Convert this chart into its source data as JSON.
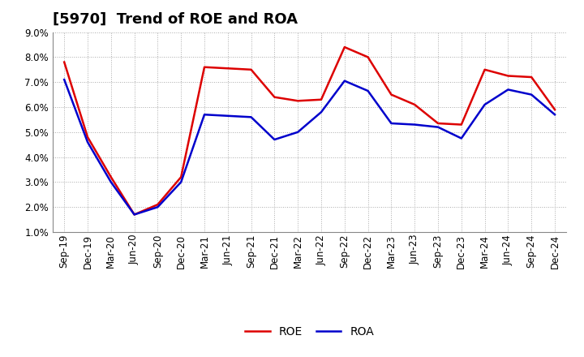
{
  "title": "[5970]  Trend of ROE and ROA",
  "labels": [
    "Sep-19",
    "Dec-19",
    "Mar-20",
    "Jun-20",
    "Sep-20",
    "Dec-20",
    "Mar-21",
    "Jun-21",
    "Sep-21",
    "Dec-21",
    "Mar-22",
    "Jun-22",
    "Sep-22",
    "Dec-22",
    "Mar-23",
    "Jun-23",
    "Sep-23",
    "Dec-23",
    "Mar-24",
    "Jun-24",
    "Sep-24",
    "Dec-24"
  ],
  "roe": [
    7.8,
    4.8,
    3.2,
    1.7,
    2.1,
    3.2,
    7.6,
    7.55,
    7.5,
    6.4,
    6.25,
    6.3,
    8.4,
    8.0,
    6.5,
    6.1,
    5.35,
    5.3,
    7.5,
    7.25,
    7.2,
    5.9
  ],
  "roa": [
    7.1,
    4.6,
    3.0,
    1.7,
    2.0,
    3.0,
    5.7,
    5.65,
    5.6,
    4.7,
    5.0,
    5.8,
    7.05,
    6.65,
    5.35,
    5.3,
    5.2,
    4.75,
    6.1,
    6.7,
    6.5,
    5.7
  ],
  "roe_color": "#dd0000",
  "roa_color": "#0000cc",
  "ylim_min": 1.0,
  "ylim_max": 9.0,
  "yticks": [
    1.0,
    2.0,
    3.0,
    4.0,
    5.0,
    6.0,
    7.0,
    8.0,
    9.0
  ],
  "bg_color": "#ffffff",
  "plot_bg_color": "#ffffff",
  "grid_color": "#aaaaaa",
  "title_fontsize": 13,
  "axis_fontsize": 8.5,
  "legend_fontsize": 10
}
